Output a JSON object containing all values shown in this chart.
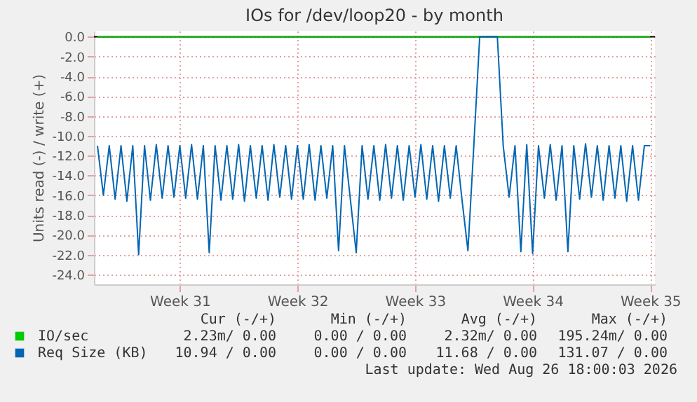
{
  "chart_data": {
    "type": "line",
    "title": "IOs for /dev/loop20 - by month",
    "ylabel": "Units read (-) / write (+)",
    "categories": [
      null,
      null,
      null,
      null,
      null,
      null,
      null,
      null,
      null,
      null,
      null,
      null,
      null,
      null,
      "Week 31",
      null,
      null,
      null,
      null,
      null,
      null,
      null,
      null,
      null,
      null,
      null,
      null,
      null,
      null,
      null,
      null,
      null,
      null,
      null,
      "Week 32",
      null,
      null,
      null,
      null,
      null,
      null,
      null,
      null,
      null,
      null,
      null,
      null,
      null,
      null,
      null,
      null,
      null,
      null,
      null,
      "Week 33",
      null,
      null,
      null,
      null,
      null,
      null,
      null,
      null,
      null,
      null,
      null,
      null,
      null,
      null,
      null,
      null,
      null,
      null,
      null,
      "Week 34",
      null,
      null,
      null,
      null,
      null,
      null,
      null,
      null,
      null,
      null,
      null,
      null,
      null,
      null,
      null,
      null,
      null,
      null,
      null,
      "Week 35"
    ],
    "ylim": [
      -25,
      0.6
    ],
    "yticks": [
      {
        "value": 0,
        "label": "0.0"
      },
      {
        "value": -2,
        "label": "-2.0"
      },
      {
        "value": -4,
        "label": "-4.0"
      },
      {
        "value": -6,
        "label": "-6.0"
      },
      {
        "value": -8,
        "label": "-8.0"
      },
      {
        "value": -10,
        "label": "-10.0"
      },
      {
        "value": -12,
        "label": "-12.0"
      },
      {
        "value": -14,
        "label": "-14.0"
      },
      {
        "value": -16,
        "label": "-16.0"
      },
      {
        "value": -18,
        "label": "-18.0"
      },
      {
        "value": -20,
        "label": "-20.0"
      },
      {
        "value": -22,
        "label": "-22.0"
      },
      {
        "value": -24,
        "label": "-24.0"
      }
    ],
    "grid": true,
    "legend": "bottom",
    "line_style": "solid",
    "marker": "none",
    "ref_lines": [
      {
        "axis": "y",
        "value": 0,
        "color": "#000000"
      }
    ],
    "series": [
      {
        "name": "IO/sec",
        "color": "#00cc00",
        "values": [
          0,
          0,
          0,
          0,
          0,
          0,
          0,
          0,
          0,
          0,
          0,
          0,
          0,
          0,
          0,
          0,
          0,
          0,
          0,
          0,
          0,
          0,
          0,
          0,
          0,
          0,
          0,
          0,
          0,
          0,
          0,
          0,
          0,
          0,
          0,
          0,
          0,
          0,
          0,
          0,
          0,
          0,
          0,
          0,
          0,
          0,
          0,
          0,
          0,
          0,
          0,
          0,
          0,
          0,
          0,
          0,
          0,
          0,
          0,
          0,
          0,
          0,
          0,
          0,
          0,
          0,
          0,
          0,
          0,
          0,
          0,
          0,
          0,
          0,
          0,
          0,
          0,
          0,
          0,
          0,
          0,
          0,
          0,
          0,
          0,
          0,
          0,
          0,
          0,
          0,
          0,
          0,
          0,
          0,
          0
        ]
      },
      {
        "name": "Req Size (KB)",
        "color": "#0066b3",
        "values": [
          -11.0,
          -16.0,
          -11.0,
          -16.4,
          -11.0,
          -16.6,
          -11.0,
          -22.0,
          -11.0,
          -16.5,
          -10.9,
          -16.3,
          -11.0,
          -16.2,
          -11.0,
          -16.3,
          -10.9,
          -16.4,
          -11.0,
          -21.8,
          -11.0,
          -16.5,
          -11.0,
          -16.4,
          -10.9,
          -16.6,
          -11.0,
          -16.3,
          -11.0,
          -16.5,
          -10.9,
          -16.2,
          -11.0,
          -16.4,
          -11.0,
          -16.4,
          -10.9,
          -16.5,
          -11.0,
          -16.3,
          -11.0,
          -21.6,
          -11.0,
          -16.4,
          -21.8,
          -11.0,
          -16.4,
          -11.0,
          -16.5,
          -10.9,
          -16.3,
          -11.0,
          -16.5,
          -11.0,
          -16.2,
          -10.9,
          -16.4,
          -11.0,
          -16.6,
          -11.0,
          -16.3,
          -11.0,
          -16.5,
          -21.6,
          -11.0,
          0,
          0,
          0,
          0,
          -11.0,
          -16.2,
          -11.0,
          -21.7,
          -10.9,
          -21.9,
          -11.0,
          -16.3,
          -10.9,
          -16.5,
          -11.0,
          -21.7,
          -11.0,
          -16.4,
          -10.8,
          -16.2,
          -11.0,
          -16.5,
          -11.0,
          -16.3,
          -11.0,
          -16.6,
          -11.0,
          -16.5,
          -11.0,
          -11.0
        ]
      }
    ],
    "annotations": [
      "Cur (-/+)",
      "Min (-/+)",
      "Avg (-/+)",
      "Max (-/+)",
      "2.23m/ 0.00",
      "0.00 / 0.00",
      "2.32m/ 0.00",
      "195.24m/ 0.00",
      "10.94 / 0.00",
      "0.00 / 0.00",
      "11.68 / 0.00",
      "131.07 / 0.00",
      "Last update: Wed Aug 26 18:00:03 2026"
    ]
  }
}
